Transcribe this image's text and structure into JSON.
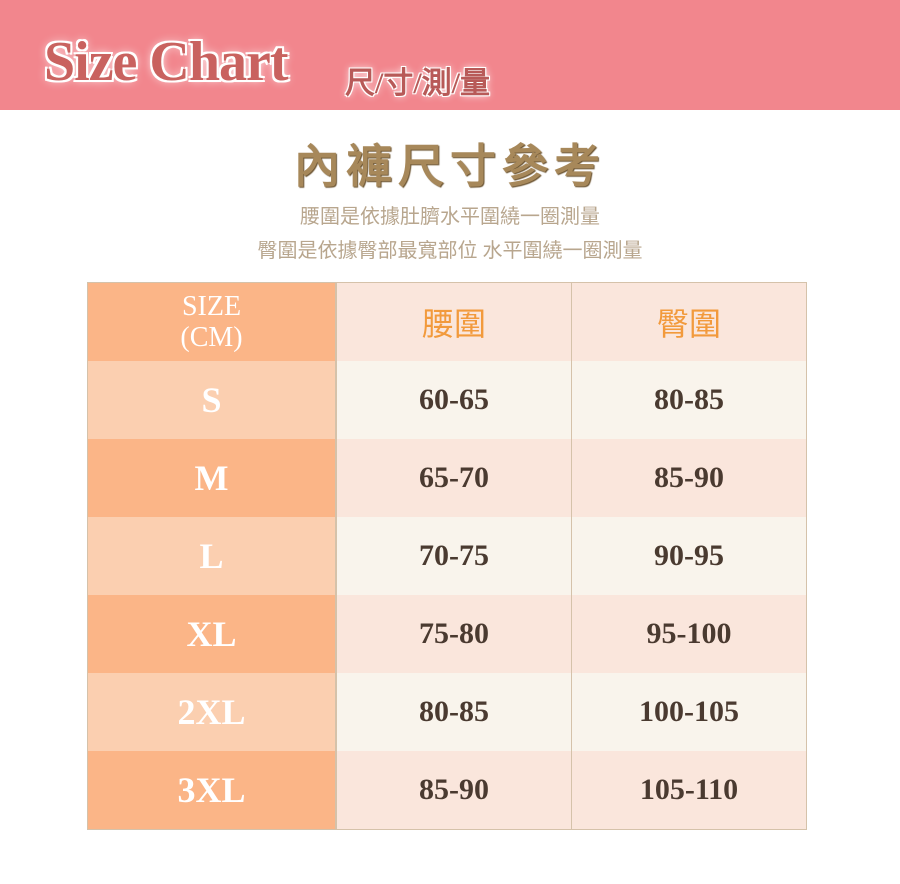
{
  "banner": {
    "brand": "Size Chart",
    "subtitle": "尺/寸/測/量",
    "color": "#f2868d"
  },
  "title": "內褲尺寸參考",
  "notes": [
    "腰圍是依據肚臍水平圍繞一圈測量",
    "臀圍是依據臀部最寬部位 水平圍繞一圈測量"
  ],
  "table": {
    "headers": {
      "size_line1": "SIZE",
      "size_line2": "(CM)",
      "waist": "腰圍",
      "hip": "臀圍"
    },
    "rows": [
      {
        "size": "S",
        "waist": "60-65",
        "hip": "80-85"
      },
      {
        "size": "M",
        "waist": "65-70",
        "hip": "85-90"
      },
      {
        "size": "L",
        "waist": "70-75",
        "hip": "90-95"
      },
      {
        "size": "XL",
        "waist": "75-80",
        "hip": "95-100"
      },
      {
        "size": "2XL",
        "waist": "80-85",
        "hip": "100-105"
      },
      {
        "size": "3XL",
        "waist": "85-90",
        "hip": "105-110"
      }
    ]
  }
}
